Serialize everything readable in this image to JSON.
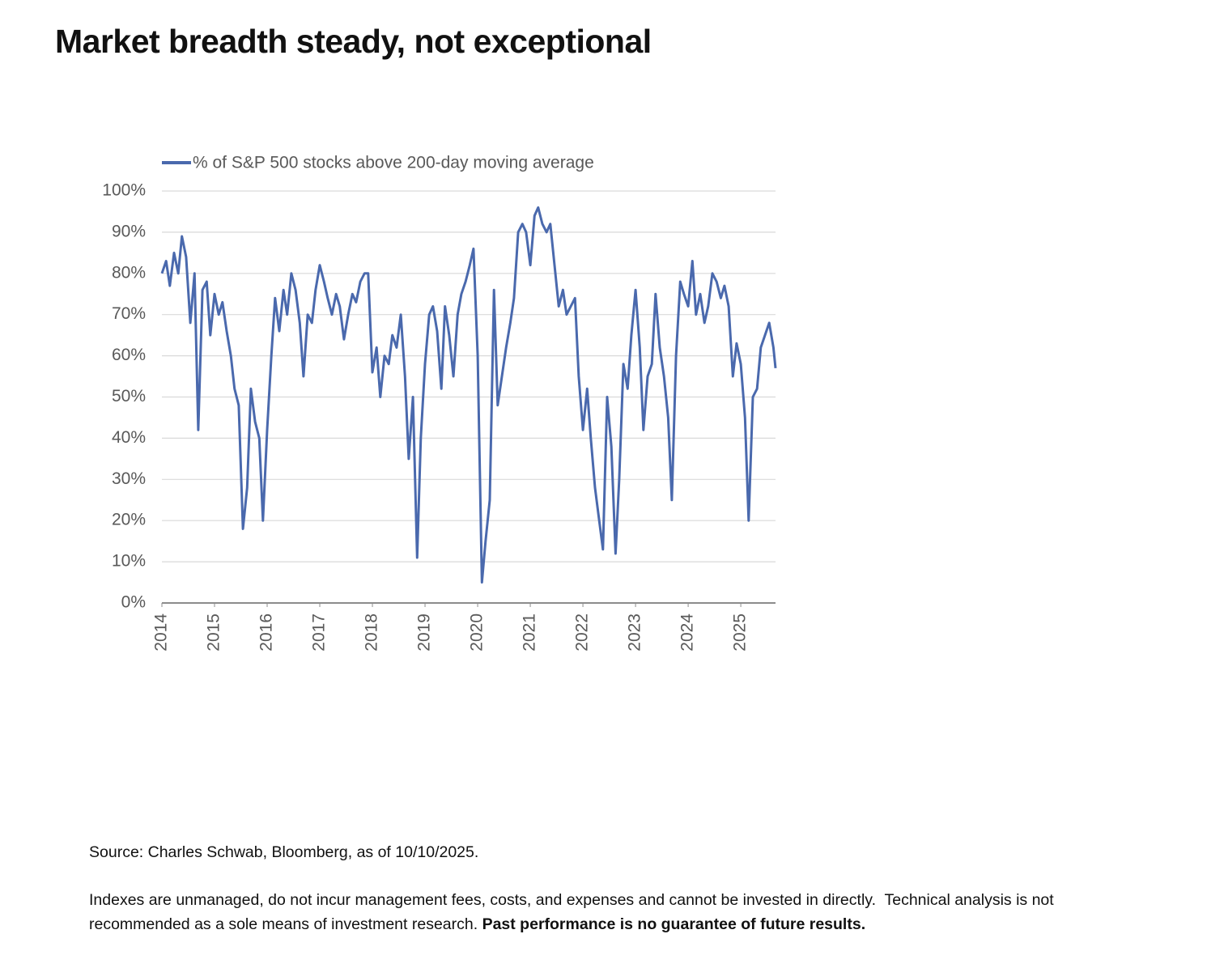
{
  "header": {
    "title": "Market breadth steady, not exceptional"
  },
  "chart_data": {
    "type": "line",
    "x": [
      2014.0,
      2014.08,
      2014.15,
      2014.23,
      2014.31,
      2014.38,
      2014.46,
      2014.54,
      2014.62,
      2014.69,
      2014.77,
      2014.85,
      2014.92,
      2015.0,
      2015.08,
      2015.15,
      2015.23,
      2015.31,
      2015.38,
      2015.46,
      2015.54,
      2015.62,
      2015.69,
      2015.77,
      2015.85,
      2015.92,
      2016.0,
      2016.08,
      2016.15,
      2016.23,
      2016.31,
      2016.38,
      2016.46,
      2016.54,
      2016.62,
      2016.69,
      2016.77,
      2016.85,
      2016.92,
      2017.0,
      2017.08,
      2017.15,
      2017.23,
      2017.31,
      2017.38,
      2017.46,
      2017.54,
      2017.62,
      2017.69,
      2017.77,
      2017.85,
      2017.92,
      2018.0,
      2018.08,
      2018.15,
      2018.23,
      2018.31,
      2018.38,
      2018.46,
      2018.54,
      2018.62,
      2018.69,
      2018.77,
      2018.85,
      2018.92,
      2019.0,
      2019.08,
      2019.15,
      2019.23,
      2019.31,
      2019.38,
      2019.46,
      2019.54,
      2019.62,
      2019.69,
      2019.77,
      2019.85,
      2019.92,
      2020.0,
      2020.08,
      2020.15,
      2020.23,
      2020.31,
      2020.38,
      2020.46,
      2020.54,
      2020.62,
      2020.69,
      2020.77,
      2020.85,
      2020.92,
      2021.0,
      2021.08,
      2021.15,
      2021.23,
      2021.31,
      2021.38,
      2021.46,
      2021.54,
      2021.62,
      2021.69,
      2021.77,
      2021.85,
      2021.92,
      2022.0,
      2022.08,
      2022.15,
      2022.23,
      2022.31,
      2022.38,
      2022.46,
      2022.54,
      2022.62,
      2022.69,
      2022.77,
      2022.85,
      2022.92,
      2023.0,
      2023.08,
      2023.15,
      2023.23,
      2023.31,
      2023.38,
      2023.46,
      2023.54,
      2023.62,
      2023.69,
      2023.77,
      2023.85,
      2023.92,
      2024.0,
      2024.08,
      2024.15,
      2024.23,
      2024.31,
      2024.38,
      2024.46,
      2024.54,
      2024.62,
      2024.69,
      2024.77,
      2024.85,
      2024.92,
      2025.0,
      2025.08,
      2025.15,
      2025.23,
      2025.31,
      2025.38,
      2025.46,
      2025.54,
      2025.62,
      2025.66
    ],
    "series": [
      {
        "name": "% of S&P 500 stocks above 200-day moving average",
        "color": "#4a69ad",
        "values": [
          80,
          83,
          77,
          85,
          80,
          89,
          84,
          68,
          80,
          42,
          76,
          78,
          65,
          75,
          70,
          73,
          66,
          60,
          52,
          48,
          18,
          28,
          52,
          44,
          40,
          20,
          42,
          60,
          74,
          66,
          76,
          70,
          80,
          76,
          68,
          55,
          70,
          68,
          76,
          82,
          78,
          74,
          70,
          75,
          72,
          64,
          70,
          75,
          73,
          78,
          80,
          80,
          56,
          62,
          50,
          60,
          58,
          65,
          62,
          70,
          55,
          35,
          50,
          11,
          40,
          58,
          70,
          72,
          66,
          52,
          72,
          65,
          55,
          70,
          75,
          78,
          82,
          86,
          60,
          5,
          15,
          25,
          76,
          48,
          55,
          62,
          68,
          74,
          90,
          92,
          90,
          82,
          94,
          96,
          92,
          90,
          92,
          82,
          72,
          76,
          70,
          72,
          74,
          55,
          42,
          52,
          40,
          28,
          20,
          13,
          50,
          38,
          12,
          30,
          58,
          52,
          65,
          76,
          62,
          42,
          55,
          58,
          75,
          62,
          55,
          45,
          25,
          60,
          78,
          75,
          72,
          83,
          70,
          75,
          68,
          72,
          80,
          78,
          74,
          77,
          72,
          55,
          63,
          58,
          45,
          20,
          50,
          52,
          62,
          65,
          68,
          62,
          57
        ]
      }
    ],
    "xlim": [
      2014,
      2025.66
    ],
    "xticks": [
      2014,
      2015,
      2016,
      2017,
      2018,
      2019,
      2020,
      2021,
      2022,
      2023,
      2024,
      2025
    ],
    "ylim": [
      0,
      100
    ],
    "yticks": [
      {
        "value": 0,
        "label": "0%"
      },
      {
        "value": 10,
        "label": "10%"
      },
      {
        "value": 20,
        "label": "20%"
      },
      {
        "value": 30,
        "label": "30%"
      },
      {
        "value": 40,
        "label": "40%"
      },
      {
        "value": 50,
        "label": "50%"
      },
      {
        "value": 60,
        "label": "60%"
      },
      {
        "value": 70,
        "label": "70%"
      },
      {
        "value": 80,
        "label": "80%"
      },
      {
        "value": 90,
        "label": "90%"
      },
      {
        "value": 100,
        "label": "100%"
      }
    ],
    "grid": true,
    "legend": "top"
  },
  "footer": {
    "source": "Source: Charles Schwab, Bloomberg, as of 10/10/2025.",
    "note_line1": "Indexes are unmanaged, do not incur management fees, costs, and expenses and cannot be invested in directly.  Technical analysis is not",
    "note_line2": "recommended as a sole means of investment research. ",
    "note_bold": "Past performance is no guarantee of future results."
  }
}
